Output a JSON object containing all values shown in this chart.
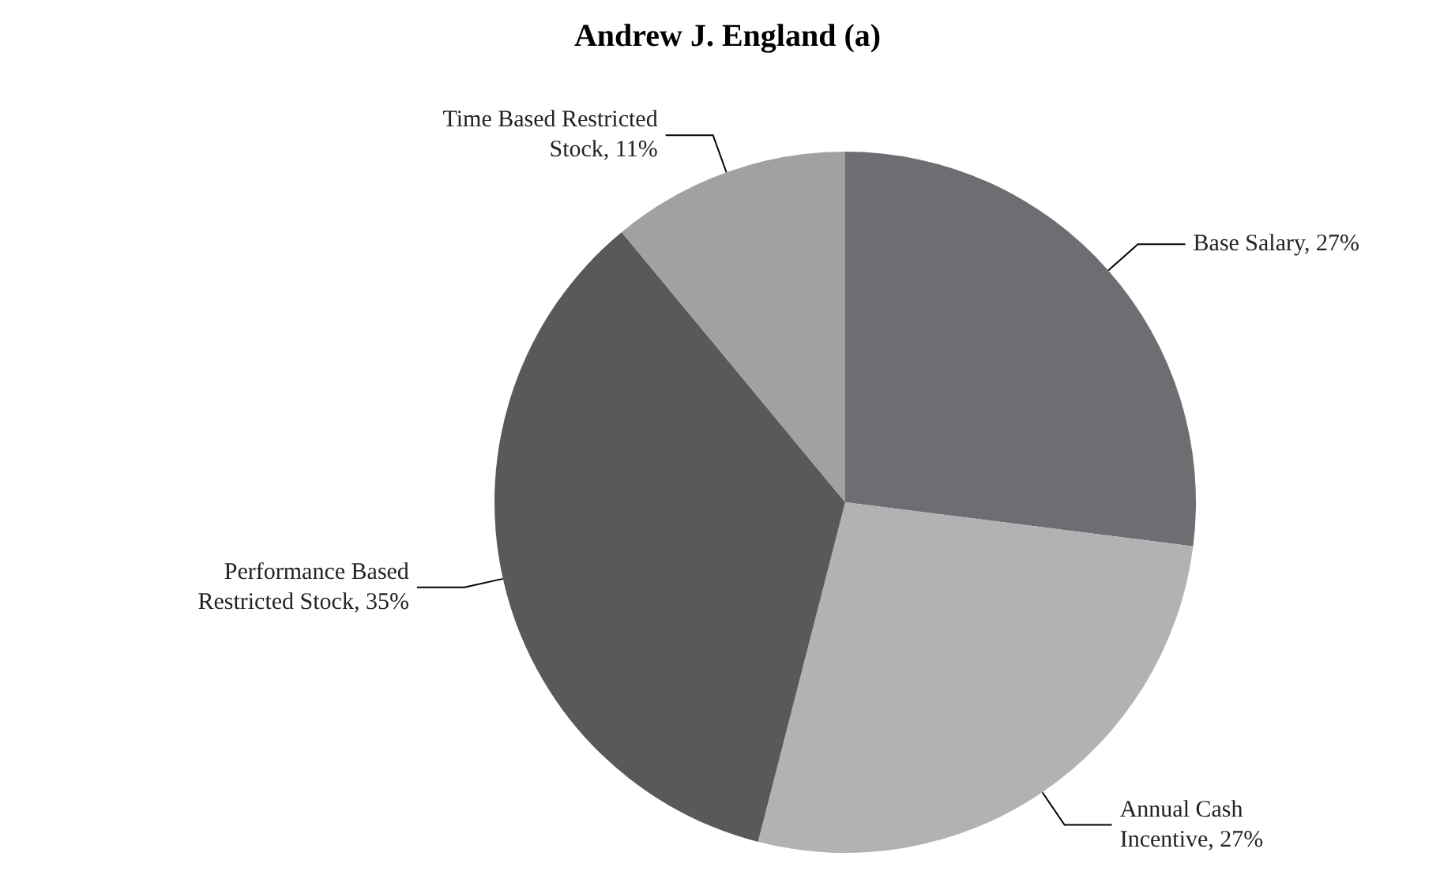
{
  "chart_data": {
    "type": "pie",
    "title": "Andrew J. England (a)",
    "categories": [
      "Base Salary",
      "Annual Cash Incentive",
      "Performance Based Restricted Stock",
      "Time Based Restricted Stock"
    ],
    "values": [
      27,
      27,
      35,
      11
    ],
    "value_labels": [
      "27%",
      "27%",
      "35%",
      "11%"
    ],
    "colors": [
      "#6d6e71",
      "#b1b2b4",
      "#58595b",
      "#a0a1a3"
    ],
    "legend": false
  }
}
